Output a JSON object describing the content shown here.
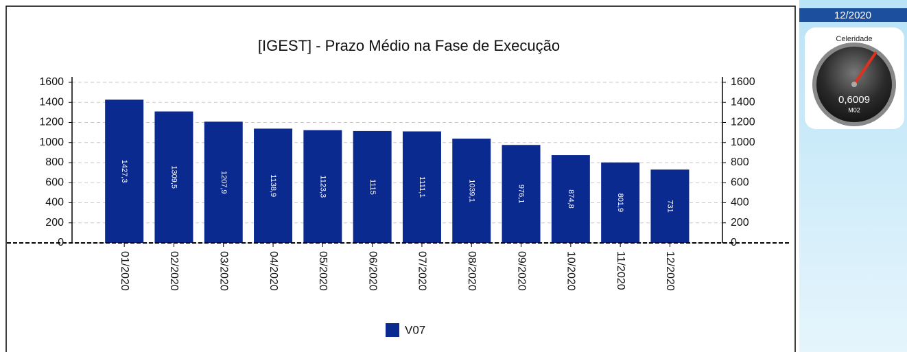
{
  "chart_data": {
    "type": "bar",
    "title": "[IGEST]  - Prazo Médio na Fase de Execução",
    "categories": [
      "01/2020",
      "02/2020",
      "03/2020",
      "04/2020",
      "05/2020",
      "06/2020",
      "07/2020",
      "08/2020",
      "09/2020",
      "10/2020",
      "11/2020",
      "12/2020"
    ],
    "series": [
      {
        "name": "V07",
        "color": "#0b2a8f",
        "values": [
          1427.3,
          1309.5,
          1207.9,
          1138.9,
          1123.3,
          1115,
          1111.1,
          1039.1,
          976.1,
          874.8,
          801.9,
          731
        ],
        "value_labels": [
          "1427,3",
          "1309,5",
          "1207,9",
          "1138,9",
          "1123,3",
          "1115",
          "1111,1",
          "1039,1",
          "976,1",
          "874,8",
          "801,9",
          "731"
        ]
      }
    ],
    "ylim": [
      0,
      1600
    ],
    "yticks": [
      0,
      200,
      400,
      600,
      800,
      1000,
      1200,
      1400,
      1600
    ],
    "y2lim": [
      0,
      1600
    ],
    "y2ticks": [
      0,
      200,
      400,
      600,
      800,
      1000,
      1200,
      1400,
      1600
    ],
    "grid": true,
    "legend": "bottom"
  },
  "panel": {
    "period": "12/2020",
    "gauge": {
      "title": "Celeridade",
      "value": "0,6009",
      "code": "M02"
    }
  }
}
